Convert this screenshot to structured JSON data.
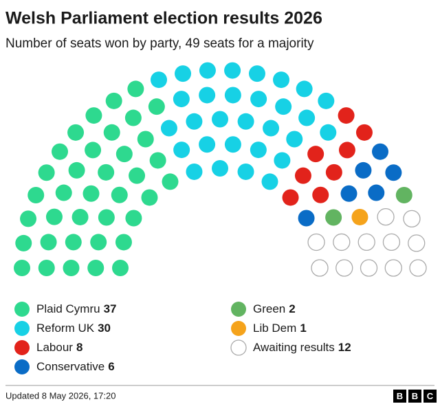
{
  "chart_data": {
    "type": "parliament",
    "title": "Welsh Parliament election results 2026",
    "subtitle": "Number of seats won by party, 49 seats for a majority",
    "series": [
      {
        "name": "Plaid Cymru",
        "color": "#2ed98f",
        "value": 37
      },
      {
        "name": "Reform UK",
        "color": "#17d1e5",
        "value": 30
      },
      {
        "name": "Labour",
        "color": "#e2231b",
        "value": 8
      },
      {
        "name": "Conservative",
        "color": "#0a6cc6",
        "value": 6
      },
      {
        "name": "Green",
        "color": "#62b461",
        "value": 2
      },
      {
        "name": "Lib Dem",
        "color": "#f5a31b",
        "value": 1
      },
      {
        "name": "Awaiting results",
        "color": "#ffffff",
        "value": 12
      }
    ],
    "footer": "Updated 8 May 2026, 17:20",
    "logo": [
      "B",
      "B",
      "C"
    ]
  }
}
